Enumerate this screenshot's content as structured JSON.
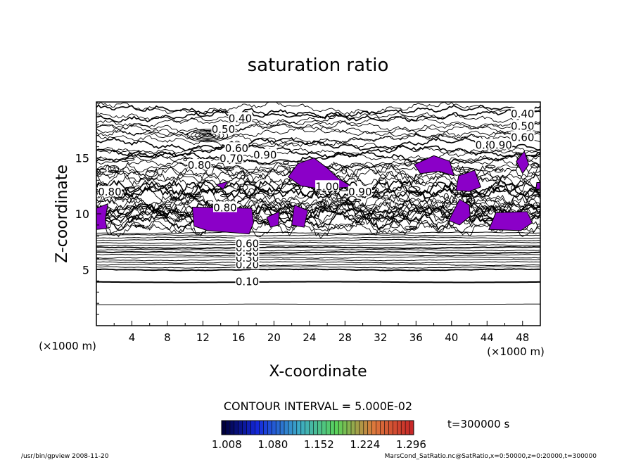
{
  "chart_data": {
    "type": "contour",
    "title": "saturation ratio",
    "xlabel": "X-coordinate",
    "ylabel": "Z-coordinate",
    "x_unit_left": "(×1000 m)",
    "x_unit_right": "(×1000 m)",
    "xlim": [
      0,
      50
    ],
    "ylim": [
      0,
      20
    ],
    "x_ticks": [
      4,
      8,
      12,
      16,
      20,
      24,
      28,
      32,
      36,
      40,
      44,
      48
    ],
    "y_ticks": [
      5,
      10,
      15
    ],
    "contour_interval_text": "CONTOUR INTERVAL = 5.000E-02",
    "time_text": "t=300000 s",
    "colorbar_labels": [
      "1.008",
      "1.080",
      "1.152",
      "1.224",
      "1.296"
    ],
    "colorbar_range": [
      1.0,
      1.3
    ],
    "contour_labels": [
      {
        "text": "0.10",
        "x": 17.0,
        "z": 4.0
      },
      {
        "text": "0.20",
        "x": 17.0,
        "z": 5.5
      },
      {
        "text": "0.30",
        "x": 17.0,
        "z": 6.1
      },
      {
        "text": "0.40",
        "x": 17.0,
        "z": 6.6
      },
      {
        "text": "0.50",
        "x": 17.0,
        "z": 7.0
      },
      {
        "text": "0.60",
        "x": 17.0,
        "z": 7.4
      },
      {
        "text": "0.40",
        "x": 48.0,
        "z": 19.0
      },
      {
        "text": "0.50",
        "x": 48.0,
        "z": 17.9
      },
      {
        "text": "0.60",
        "x": 48.0,
        "z": 16.9
      },
      {
        "text": "0.80",
        "x": 44.0,
        "z": 16.2
      },
      {
        "text": "0.90",
        "x": 45.5,
        "z": 16.2
      },
      {
        "text": "0.40",
        "x": 16.2,
        "z": 18.6
      },
      {
        "text": "0.50",
        "x": 14.3,
        "z": 17.6
      },
      {
        "text": "0.60",
        "x": 15.8,
        "z": 15.9
      },
      {
        "text": "0.70",
        "x": 15.2,
        "z": 15.0
      },
      {
        "text": "0.80",
        "x": 11.6,
        "z": 14.4
      },
      {
        "text": "0.90",
        "x": 19.0,
        "z": 15.3
      },
      {
        "text": "1.00",
        "x": 26.0,
        "z": 12.5
      },
      {
        "text": "0.90",
        "x": 29.7,
        "z": 12.0
      },
      {
        "text": "0.80",
        "x": 1.5,
        "z": 12.0
      },
      {
        "text": "0.80",
        "x": 14.5,
        "z": 10.6
      }
    ],
    "filled_regions_description_level": "> 1.0 (supersaturated)",
    "fill_color": "#8b00c8"
  },
  "footer": {
    "left": "/usr/bin/gpview   2008-11-20",
    "right": "MarsCond_SatRatio.nc@SatRatio,x=0:50000,z=0:20000,t=300000"
  }
}
